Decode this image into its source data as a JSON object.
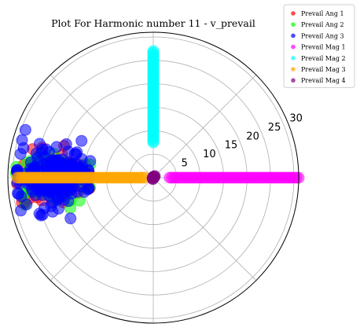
{
  "chart_data": {
    "type": "scatter",
    "projection": "polar",
    "title": "Plot For Harmonic number 11 - v_prevail",
    "r_ticks": [
      5,
      10,
      15,
      20,
      25,
      30
    ],
    "r_tick_labels": [
      "5",
      "10",
      "15",
      "20",
      "25",
      "30"
    ],
    "rlim": [
      0,
      31
    ],
    "theta_gridlines_deg": [
      0,
      45,
      90,
      135,
      180,
      225,
      270,
      315
    ],
    "grid": true,
    "legend_position": "top-right",
    "series": [
      {
        "name": "Prevail Ang 1",
        "color": "#ff0000",
        "shape": "cloud",
        "theta_center_deg": 180,
        "r_center": 21.5,
        "r_spread": 7.8,
        "theta_spread_deg": 15,
        "point_count": 70
      },
      {
        "name": "Prevail Ang 2",
        "color": "#00ff00",
        "shape": "cloud",
        "theta_center_deg": 180,
        "r_center": 21.5,
        "r_spread": 7.8,
        "theta_spread_deg": 16,
        "point_count": 70
      },
      {
        "name": "Prevail Ang 3",
        "color": "#0000ff",
        "shape": "cloud",
        "theta_center_deg": 180,
        "r_center": 21.5,
        "r_spread": 7.6,
        "theta_spread_deg": 16,
        "point_count": 230
      },
      {
        "name": "Prevail Mag 1",
        "color": "#ff00ff",
        "shape": "ray",
        "theta_deg": 0,
        "r_range": [
          3.5,
          31
        ]
      },
      {
        "name": "Prevail Mag 2",
        "color": "#00ffff",
        "shape": "ray",
        "theta_deg": 90,
        "r_range": [
          7.5,
          27
        ]
      },
      {
        "name": "Prevail Mag 3",
        "color": "#ffa500",
        "shape": "ray",
        "theta_deg": 180,
        "r_range": [
          1.8,
          29
        ]
      },
      {
        "name": "Prevail Mag 4",
        "color": "#800080",
        "shape": "point",
        "theta_deg": 0,
        "r": 0
      }
    ]
  }
}
